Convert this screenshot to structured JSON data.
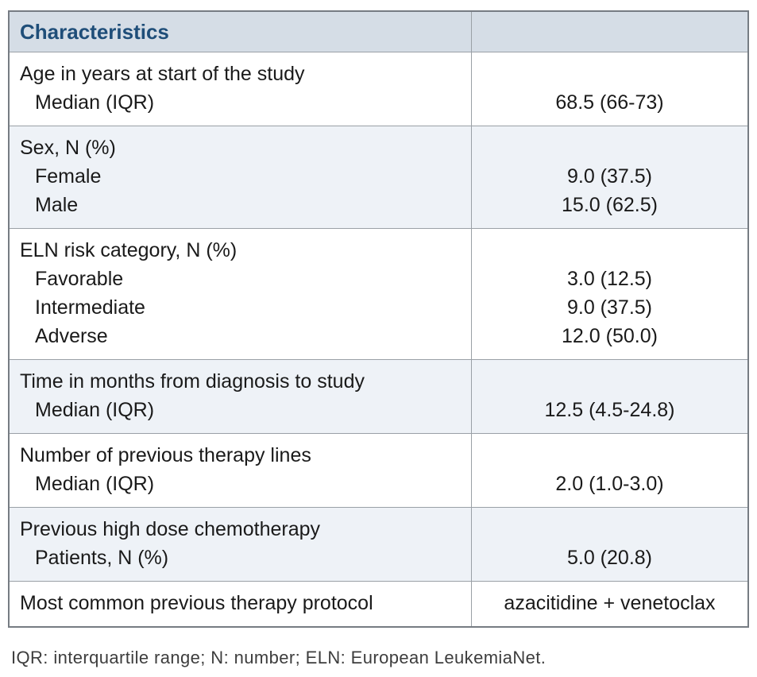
{
  "colors": {
    "header_bg": "#d5dde6",
    "header_text": "#1f4e79",
    "alt_row_bg": "#eef2f7",
    "border_outer": "#767c83",
    "border_inner": "#9aa0a6"
  },
  "table": {
    "header": {
      "title": "Characteristics",
      "value": ""
    },
    "rows": [
      {
        "label": "Age in years at start of the study",
        "subs": [
          "Median (IQR)"
        ],
        "values": [
          "68.5 (66-73)"
        ]
      },
      {
        "label": "Sex, N (%)",
        "subs": [
          "Female",
          "Male"
        ],
        "values": [
          "9.0 (37.5)",
          "15.0 (62.5)"
        ]
      },
      {
        "label": "ELN risk category, N (%)",
        "subs": [
          "Favorable",
          "Intermediate",
          "Adverse"
        ],
        "values": [
          "3.0 (12.5)",
          "9.0 (37.5)",
          "12.0 (50.0)"
        ]
      },
      {
        "label": "Time in months from diagnosis to study",
        "subs": [
          "Median (IQR)"
        ],
        "values": [
          "12.5 (4.5-24.8)"
        ]
      },
      {
        "label": "Number of previous therapy lines",
        "subs": [
          "Median (IQR)"
        ],
        "values": [
          "2.0 (1.0-3.0)"
        ]
      },
      {
        "label": "Previous high dose chemotherapy",
        "subs": [
          "Patients, N (%)"
        ],
        "values": [
          "5.0 (20.8)"
        ]
      },
      {
        "label": "Most common previous therapy protocol",
        "subs": [],
        "values": [
          "azacitidine + venetoclax"
        ]
      }
    ]
  },
  "footnote": "IQR: interquartile range; N: number; ELN: European LeukemiaNet."
}
